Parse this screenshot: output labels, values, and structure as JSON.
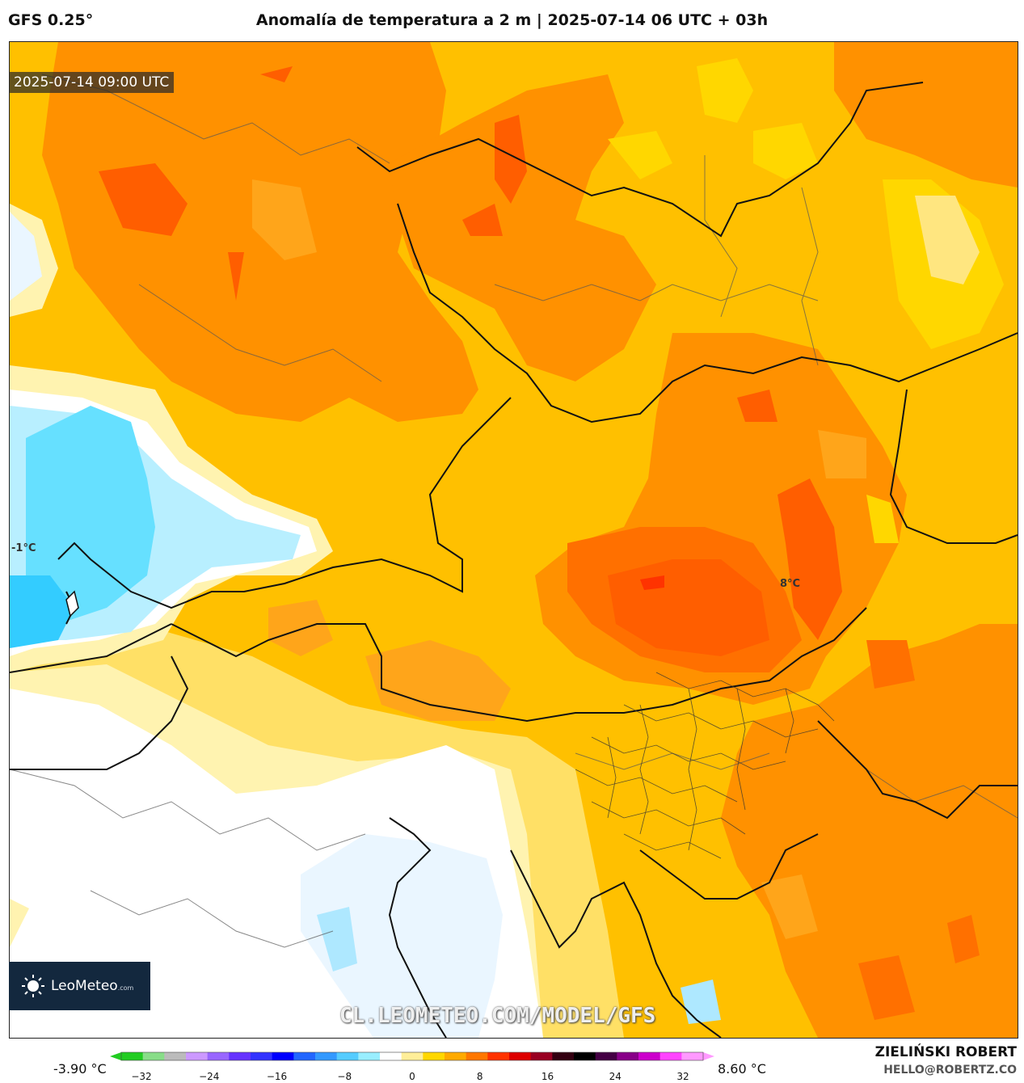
{
  "header": {
    "model": "GFS 0.25°",
    "title": "Anomalía de temperatura a 2 m | 2025-07-14 06 UTC + 03h"
  },
  "map": {
    "timestamp": "2025-07-14 09:00 UTC",
    "labels": [
      {
        "text": "-1°C"
      },
      {
        "text": "8°C"
      }
    ],
    "watermark": "CL.LEOMETEO.COM/MODEL/GFS"
  },
  "logo": {
    "name": "LeoMeteo",
    "suffix": ".com"
  },
  "colorbar": {
    "min_label": "-3.90 °C",
    "max_label": "8.60 °C",
    "ticks": [
      "−32",
      "−24",
      "−16",
      "−8",
      "0",
      "8",
      "16",
      "24",
      "32"
    ],
    "colors": [
      "#22cc22",
      "#88dd88",
      "#bbbbbb",
      "#cc99ff",
      "#9966ff",
      "#6633ff",
      "#3333ff",
      "#0000ff",
      "#2266ff",
      "#3399ff",
      "#55ccff",
      "#99eeff",
      "#ffffff",
      "#ffee99",
      "#ffd700",
      "#ffaa00",
      "#ff7700",
      "#ff3300",
      "#dd0000",
      "#990022",
      "#330011",
      "#000000",
      "#440044",
      "#880088",
      "#cc00cc",
      "#ff44ff",
      "#ff99ff"
    ]
  },
  "author": {
    "name": "ZIELIŃSKI ROBERT",
    "email": "HELLO@ROBERTZ.CO"
  }
}
